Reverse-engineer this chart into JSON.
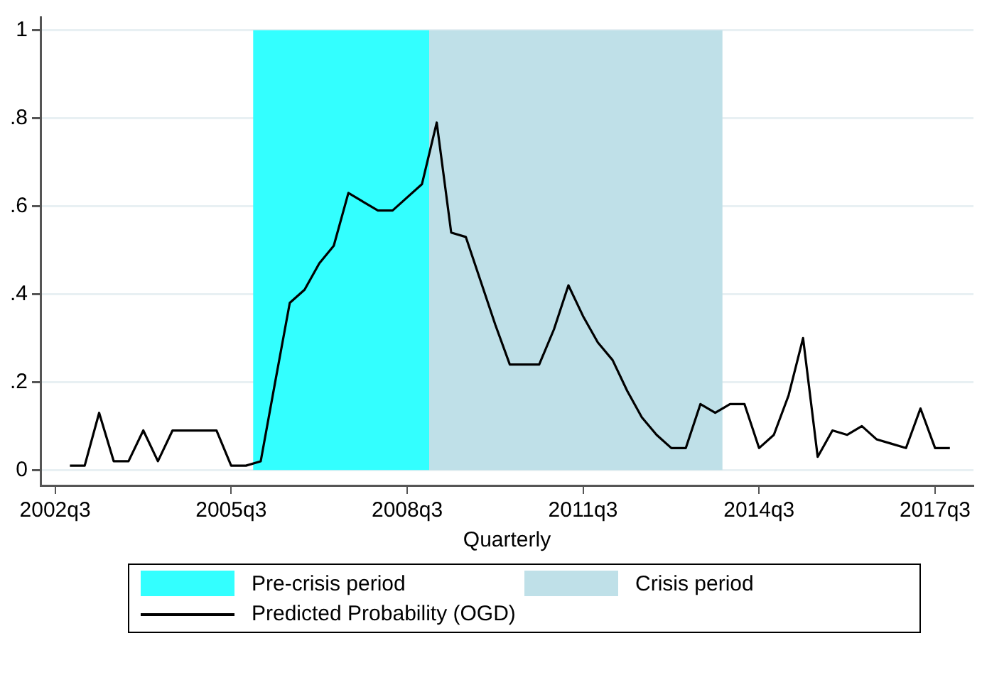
{
  "chart_data": {
    "type": "line",
    "xlabel": "Quarterly",
    "x": [
      "2002-10",
      "2003-01",
      "2003-04",
      "2003-07",
      "2003-10",
      "2004-01",
      "2004-04",
      "2004-07",
      "2004-10",
      "2005-01",
      "2005-04",
      "2005-07",
      "2005-10",
      "2006-01",
      "2006-04",
      "2006-07",
      "2006-10",
      "2007-01",
      "2007-04",
      "2007-07",
      "2007-10",
      "2008-01",
      "2008-04",
      "2008-07",
      "2008-10",
      "2009-01",
      "2009-04",
      "2009-07",
      "2009-10",
      "2010-01",
      "2010-04",
      "2010-07",
      "2010-10",
      "2011-01",
      "2011-04",
      "2011-07",
      "2011-10",
      "2012-01",
      "2012-04",
      "2012-07",
      "2012-10",
      "2013-01",
      "2013-04",
      "2013-07",
      "2013-10",
      "2014-01",
      "2014-04",
      "2014-07",
      "2014-10",
      "2015-01",
      "2015-04",
      "2015-07",
      "2015-10",
      "2016-01",
      "2016-04",
      "2016-07",
      "2016-10",
      "2017-01",
      "2017-04",
      "2017-07",
      "2017-10"
    ],
    "series": [
      {
        "name": "Predicted Probability (OGD)",
        "color": "#000000",
        "values": [
          0.01,
          0.01,
          0.13,
          0.02,
          0.02,
          0.09,
          0.02,
          0.09,
          0.09,
          0.09,
          0.09,
          0.01,
          0.01,
          0.02,
          0.2,
          0.38,
          0.41,
          0.47,
          0.51,
          0.63,
          0.61,
          0.59,
          0.59,
          0.62,
          0.65,
          0.79,
          0.54,
          0.53,
          0.43,
          0.33,
          0.24,
          0.24,
          0.24,
          0.32,
          0.42,
          0.35,
          0.29,
          0.25,
          0.18,
          0.12,
          0.08,
          0.05,
          0.05,
          0.15,
          0.13,
          0.15,
          0.15,
          0.05,
          0.08,
          0.17,
          0.3,
          0.03,
          0.09,
          0.08,
          0.1,
          0.07,
          0.06,
          0.05,
          0.14,
          0.05,
          0.05
        ]
      }
    ],
    "bands": [
      {
        "axis": "x",
        "from": "2005-11-15",
        "to": "2008-11-15",
        "label": "Pre-crisis period",
        "color": "#33ffff"
      },
      {
        "axis": "x",
        "from": "2008-11-15",
        "to": "2013-11-15",
        "label": "Crisis period",
        "color": "#bfe0e8"
      }
    ],
    "xlim": [
      "2002-04",
      "2018-02-25"
    ],
    "xticks": [
      {
        "value": "2002-07",
        "label": "2002q3"
      },
      {
        "value": "2005-07",
        "label": "2005q3"
      },
      {
        "value": "2008-07",
        "label": "2008q3"
      },
      {
        "value": "2011-07",
        "label": "2011q3"
      },
      {
        "value": "2014-07",
        "label": "2014q3"
      },
      {
        "value": "2017-07",
        "label": "2017q3"
      }
    ],
    "ylim": [
      -0.035,
      1.03
    ],
    "yticks": [
      0,
      {
        "value": 0.2,
        "label": ".2"
      },
      {
        "value": 0.4,
        "label": ".4"
      },
      {
        "value": 0.6,
        "label": ".6"
      },
      {
        "value": 0.8,
        "label": ".8"
      },
      1
    ],
    "grid": "y",
    "legend": "bottom",
    "marker": "none",
    "line_style": "solid"
  }
}
